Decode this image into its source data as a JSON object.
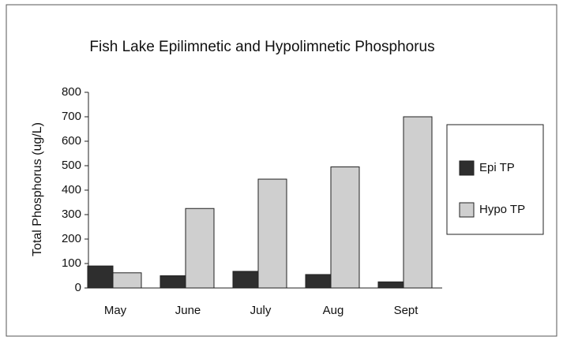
{
  "chart_data": {
    "type": "bar",
    "title": "Fish Lake Epilimnetic and Hypolimnetic Phosphorus",
    "y_label": "Total Phosphorus (ug/L)",
    "categories": [
      "May",
      "June",
      "July",
      "Aug",
      "Sept"
    ],
    "series": [
      {
        "name": "Epi TP",
        "color": "#2e2e2e",
        "values": [
          90,
          50,
          68,
          55,
          25
        ]
      },
      {
        "name": "Hypo TP",
        "color": "#cfcfcf",
        "values": [
          62,
          325,
          445,
          495,
          700
        ]
      }
    ],
    "ylim": [
      0,
      800
    ],
    "yticks": [
      0,
      100,
      200,
      300,
      400,
      500,
      600,
      700,
      800
    ],
    "grid": false,
    "legend": "right"
  }
}
